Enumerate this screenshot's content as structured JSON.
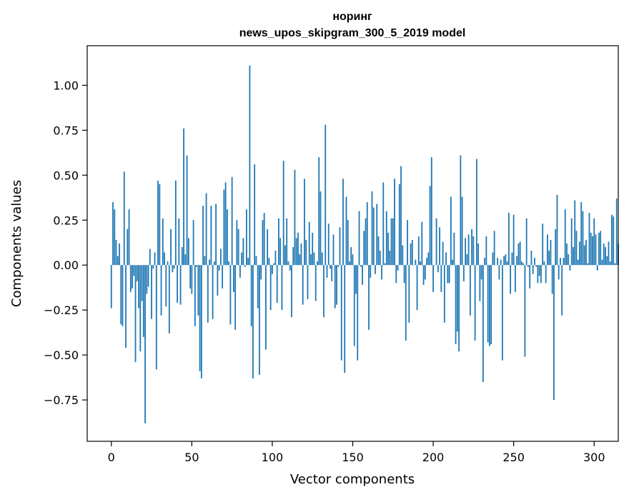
{
  "chart_data": {
    "type": "bar",
    "title": "норинг",
    "subtitle": "news_upos_skipgram_300_5_2019 model",
    "xlabel": "Vector components",
    "ylabel": "Components values",
    "xlim": [
      -15,
      315
    ],
    "ylim": [
      -0.98,
      1.22
    ],
    "xticks": [
      0,
      50,
      100,
      150,
      200,
      250,
      300
    ],
    "yticks": [
      -0.75,
      -0.5,
      -0.25,
      0.0,
      0.25,
      0.5,
      0.75,
      1.0
    ],
    "ytick_labels": [
      "−0.75",
      "−0.50",
      "−0.25",
      "0.00",
      "0.25",
      "0.50",
      "0.75",
      "1.00"
    ],
    "grid": false,
    "bar_color": "#1f77b4",
    "values": [
      -0.24,
      0.35,
      0.31,
      0.14,
      0.05,
      0.12,
      -0.33,
      -0.34,
      0.52,
      -0.46,
      0.2,
      0.31,
      -0.15,
      -0.13,
      -0.06,
      -0.54,
      -0.09,
      -0.24,
      -0.48,
      -0.2,
      -0.4,
      -0.88,
      -0.16,
      -0.12,
      0.09,
      -0.3,
      -0.02,
      0.07,
      -0.58,
      0.47,
      0.45,
      -0.28,
      0.26,
      0.07,
      -0.23,
      0.02,
      -0.38,
      0.2,
      -0.04,
      -0.02,
      0.47,
      -0.21,
      0.26,
      -0.22,
      0.1,
      0.76,
      0.06,
      0.61,
      0.15,
      -0.13,
      -0.16,
      0.25,
      -0.34,
      -0.01,
      -0.28,
      -0.59,
      -0.63,
      0.33,
      0.05,
      0.4,
      -0.32,
      0.03,
      0.33,
      -0.3,
      0.02,
      0.34,
      -0.17,
      -0.03,
      0.09,
      -0.13,
      0.42,
      0.46,
      0.31,
      0.02,
      -0.33,
      0.49,
      -0.15,
      -0.36,
      0.25,
      0.2,
      -0.07,
      0.07,
      0.15,
      -0.01,
      0.31,
      0.04,
      1.11,
      -0.34,
      -0.63,
      0.56,
      0.05,
      -0.24,
      -0.61,
      -0.08,
      0.25,
      0.29,
      -0.47,
      0.2,
      0.04,
      -0.25,
      -0.05,
      0.01,
      0.08,
      -0.21,
      0.26,
      0.15,
      -0.25,
      0.58,
      0.11,
      0.26,
      0.02,
      -0.03,
      -0.29,
      0.1,
      0.53,
      0.15,
      0.18,
      0.06,
      0.12,
      -0.22,
      0.48,
      0.14,
      -0.19,
      0.24,
      0.06,
      0.18,
      0.07,
      -0.2,
      0.02,
      0.6,
      0.41,
      0.07,
      -0.29,
      0.78,
      -0.07,
      0.23,
      -0.02,
      -0.09,
      0.17,
      -0.24,
      -0.22,
      -0.01,
      0.21,
      -0.53,
      0.48,
      -0.6,
      0.38,
      0.25,
      0.02,
      0.1,
      0.06,
      -0.45,
      -0.16,
      -0.53,
      0.3,
      -0.01,
      -0.11,
      0.19,
      0.26,
      0.35,
      -0.36,
      -0.07,
      0.41,
      0.32,
      -0.05,
      0.34,
      0.16,
      0.08,
      -0.08,
      0.46,
      0.01,
      0.3,
      0.18,
      0.08,
      0.26,
      0.26,
      0.48,
      -0.1,
      -0.03,
      0.45,
      0.55,
      0.11,
      -0.1,
      -0.42,
      0.25,
      -0.32,
      0.12,
      0.14,
      0.0,
      0.03,
      -0.25,
      0.16,
      0.02,
      0.24,
      -0.11,
      -0.08,
      0.04,
      0.07,
      0.44,
      0.6,
      -0.15,
      0.0,
      0.26,
      -0.04,
      0.21,
      -0.15,
      0.13,
      -0.32,
      0.07,
      -0.1,
      -0.1,
      0.38,
      0.03,
      0.18,
      -0.44,
      -0.37,
      -0.48,
      0.61,
      0.38,
      -0.09,
      0.15,
      0.06,
      0.17,
      -0.28,
      0.2,
      0.16,
      -0.42,
      0.59,
      0.12,
      -0.2,
      -0.08,
      -0.65,
      0.04,
      0.16,
      -0.43,
      -0.45,
      -0.44,
      0.07,
      0.19,
      0.0,
      0.04,
      -0.08,
      0.03,
      -0.53,
      0.05,
      0.06,
      0.02,
      0.29,
      -0.16,
      0.07,
      0.28,
      -0.15,
      0.05,
      0.12,
      0.13,
      0.02,
      0.01,
      -0.51,
      0.26,
      -0.01,
      -0.13,
      0.08,
      -0.05,
      0.04,
      -0.01,
      -0.1,
      -0.06,
      -0.1,
      0.23,
      0.02,
      -0.1,
      0.17,
      0.08,
      0.14,
      -0.16,
      -0.75,
      0.2,
      0.39,
      -0.08,
      0.04,
      -0.28,
      0.04,
      0.31,
      0.12,
      0.06,
      -0.03,
      0.26,
      0.1,
      0.36,
      0.19,
      0.03,
      0.13,
      0.35,
      0.3,
      0.11,
      0.14,
      0.01,
      0.29,
      0.18,
      0.16,
      0.26,
      0.17,
      -0.03,
      0.18,
      0.19,
      0.03,
      0.12,
      0.1,
      0.05,
      0.13,
      0.02,
      0.28,
      0.27,
      0.01,
      0.37,
      0.12
    ]
  }
}
